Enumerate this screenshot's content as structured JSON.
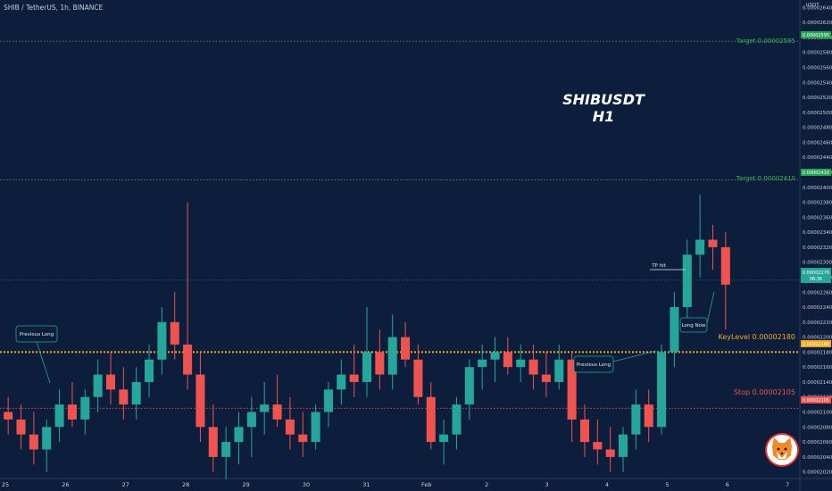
{
  "header": {
    "symbol_line": "SHIB / TetherUS, 1h, BINANCE"
  },
  "price_scale": {
    "currency": "USDT",
    "ticks": [
      "0.00002640",
      "0.00002620",
      "0.00002600",
      "0.00002580",
      "0.00002560",
      "0.00002540",
      "0.00002520",
      "0.00002500",
      "0.00002480",
      "0.00002460",
      "0.00002440",
      "0.00002420",
      "0.00002400",
      "0.00002380",
      "0.00002360",
      "0.00002340",
      "0.00002320",
      "0.00002300",
      "0.00002280",
      "0.00002260",
      "0.00002240",
      "0.00002220",
      "0.00002200",
      "0.00002180",
      "0.00002160",
      "0.00002140",
      "0.00002120",
      "0.00002100",
      "0.00002080",
      "0.00002060",
      "0.00002040",
      "0.00002020"
    ],
    "tick_values": [
      2.64e-05,
      2.62e-05,
      2.6e-05,
      2.58e-05,
      2.56e-05,
      2.54e-05,
      2.52e-05,
      2.5e-05,
      2.48e-05,
      2.46e-05,
      2.44e-05,
      2.42e-05,
      2.4e-05,
      2.38e-05,
      2.36e-05,
      2.34e-05,
      2.32e-05,
      2.3e-05,
      2.28e-05,
      2.26e-05,
      2.24e-05,
      2.22e-05,
      2.2e-05,
      2.18e-05,
      2.16e-05,
      2.14e-05,
      2.12e-05,
      2.1e-05,
      2.08e-05,
      2.06e-05,
      2.04e-05,
      2.02e-05
    ]
  },
  "time_axis": {
    "labels": [
      "25",
      "26",
      "27",
      "28",
      "29",
      "30",
      "31",
      "Feb",
      "2",
      "3",
      "4",
      "5",
      "6",
      "7"
    ]
  },
  "colors": {
    "background": "#0c1e3b",
    "up": "#26a69a",
    "down": "#ef5350",
    "target": "#27a555",
    "keylevel": "#f5a623",
    "stop": "#ef5350",
    "axis_text": "#c8d0dc"
  },
  "chart_data": {
    "type": "candlestick",
    "title": "SHIBUSDT",
    "subtitle": "H1",
    "ylim": [
      2.016e-05,
      2.65e-05
    ],
    "levels": [
      {
        "label": "Target 0.00002595",
        "value": 2.595e-05,
        "badge": "0.00002595",
        "color": "#27a555",
        "style": "dotted"
      },
      {
        "label": "Target 0.00002410",
        "value": 2.41e-05,
        "badge": "0.00002410",
        "color": "#27a555",
        "style": "dotted"
      },
      {
        "label": "KeyLevel 0.00002180",
        "value": 2.18e-05,
        "badge": "0.00002180",
        "color": "#f5a623",
        "style": "dotted-thick"
      },
      {
        "label": "Stop 0.00002105",
        "value": 2.105e-05,
        "badge": "0.00002105",
        "color": "#ef5350",
        "style": "dotted"
      }
    ],
    "current_price": {
      "price": "0.00002276",
      "countdown": "06:36",
      "value": 2.276e-05
    },
    "annotations": [
      {
        "text": "Previous Long"
      },
      {
        "text": "Previous Long"
      },
      {
        "text": "Long Now"
      },
      {
        "text": "TP hit"
      }
    ],
    "candles": [
      {
        "t": "25",
        "o": 2.1e-05,
        "h": 2.12e-05,
        "l": 2.07e-05,
        "c": 2.09e-05
      },
      {
        "t": "25",
        "o": 2.09e-05,
        "h": 2.11e-05,
        "l": 2.05e-05,
        "c": 2.07e-05
      },
      {
        "t": "25",
        "o": 2.07e-05,
        "h": 2.1e-05,
        "l": 2.03e-05,
        "c": 2.05e-05
      },
      {
        "t": "25",
        "o": 2.05e-05,
        "h": 2.09e-05,
        "l": 2.02e-05,
        "c": 2.08e-05
      },
      {
        "t": "25",
        "o": 2.08e-05,
        "h": 2.13e-05,
        "l": 2.06e-05,
        "c": 2.11e-05
      },
      {
        "t": "25",
        "o": 2.11e-05,
        "h": 2.14e-05,
        "l": 2.08e-05,
        "c": 2.09e-05
      },
      {
        "t": "25",
        "o": 2.09e-05,
        "h": 2.13e-05,
        "l": 2.07e-05,
        "c": 2.12e-05
      },
      {
        "t": "26",
        "o": 2.12e-05,
        "h": 2.17e-05,
        "l": 2.1e-05,
        "c": 2.15e-05
      },
      {
        "t": "26",
        "o": 2.15e-05,
        "h": 2.18e-05,
        "l": 2.11e-05,
        "c": 2.13e-05
      },
      {
        "t": "26",
        "o": 2.13e-05,
        "h": 2.16e-05,
        "l": 2.09e-05,
        "c": 2.11e-05
      },
      {
        "t": "26",
        "o": 2.11e-05,
        "h": 2.16e-05,
        "l": 2.09e-05,
        "c": 2.14e-05
      },
      {
        "t": "26",
        "o": 2.14e-05,
        "h": 2.19e-05,
        "l": 2.12e-05,
        "c": 2.17e-05
      },
      {
        "t": "26",
        "o": 2.17e-05,
        "h": 2.24e-05,
        "l": 2.15e-05,
        "c": 2.22e-05
      },
      {
        "t": "26",
        "o": 2.22e-05,
        "h": 2.26e-05,
        "l": 2.17e-05,
        "c": 2.19e-05
      },
      {
        "t": "27",
        "o": 2.19e-05,
        "h": 2.38e-05,
        "l": 2.13e-05,
        "c": 2.15e-05
      },
      {
        "t": "27",
        "o": 2.15e-05,
        "h": 2.18e-05,
        "l": 2.06e-05,
        "c": 2.08e-05
      },
      {
        "t": "27",
        "o": 2.08e-05,
        "h": 2.11e-05,
        "l": 2.02e-05,
        "c": 2.04e-05
      },
      {
        "t": "27",
        "o": 2.04e-05,
        "h": 2.08e-05,
        "l": 2.01e-05,
        "c": 2.06e-05
      },
      {
        "t": "27",
        "o": 2.06e-05,
        "h": 2.1e-05,
        "l": 2.03e-05,
        "c": 2.08e-05
      },
      {
        "t": "28",
        "o": 2.08e-05,
        "h": 2.12e-05,
        "l": 2.04e-05,
        "c": 2.1e-05
      },
      {
        "t": "28",
        "o": 2.1e-05,
        "h": 2.14e-05,
        "l": 2.07e-05,
        "c": 2.11e-05
      },
      {
        "t": "28",
        "o": 2.11e-05,
        "h": 2.15e-05,
        "l": 2.08e-05,
        "c": 2.09e-05
      },
      {
        "t": "28",
        "o": 2.09e-05,
        "h": 2.12e-05,
        "l": 2.05e-05,
        "c": 2.07e-05
      },
      {
        "t": "28",
        "o": 2.07e-05,
        "h": 2.1e-05,
        "l": 2.04e-05,
        "c": 2.06e-05
      },
      {
        "t": "29",
        "o": 2.06e-05,
        "h": 2.11e-05,
        "l": 2.05e-05,
        "c": 2.1e-05
      },
      {
        "t": "29",
        "o": 2.1e-05,
        "h": 2.14e-05,
        "l": 2.08e-05,
        "c": 2.13e-05
      },
      {
        "t": "29",
        "o": 2.13e-05,
        "h": 2.17e-05,
        "l": 2.11e-05,
        "c": 2.15e-05
      },
      {
        "t": "29",
        "o": 2.15e-05,
        "h": 2.19e-05,
        "l": 2.12e-05,
        "c": 2.14e-05
      },
      {
        "t": "30",
        "o": 2.14e-05,
        "h": 2.24e-05,
        "l": 2.12e-05,
        "c": 2.18e-05
      },
      {
        "t": "30",
        "o": 2.18e-05,
        "h": 2.21e-05,
        "l": 2.13e-05,
        "c": 2.15e-05
      },
      {
        "t": "30",
        "o": 2.15e-05,
        "h": 2.23e-05,
        "l": 2.13e-05,
        "c": 2.2e-05
      },
      {
        "t": "30",
        "o": 2.2e-05,
        "h": 2.22e-05,
        "l": 2.16e-05,
        "c": 2.17e-05
      },
      {
        "t": "31",
        "o": 2.17e-05,
        "h": 2.19e-05,
        "l": 2.11e-05,
        "c": 2.12e-05
      },
      {
        "t": "31",
        "o": 2.12e-05,
        "h": 2.14e-05,
        "l": 2.05e-05,
        "c": 2.06e-05
      },
      {
        "t": "31",
        "o": 2.06e-05,
        "h": 2.09e-05,
        "l": 2.03e-05,
        "c": 2.07e-05
      },
      {
        "t": "31",
        "o": 2.07e-05,
        "h": 2.12e-05,
        "l": 2.05e-05,
        "c": 2.11e-05
      },
      {
        "t": "Feb",
        "o": 2.11e-05,
        "h": 2.17e-05,
        "l": 2.09e-05,
        "c": 2.16e-05
      },
      {
        "t": "Feb",
        "o": 2.16e-05,
        "h": 2.19e-05,
        "l": 2.13e-05,
        "c": 2.17e-05
      },
      {
        "t": "Feb",
        "o": 2.17e-05,
        "h": 2.2e-05,
        "l": 2.14e-05,
        "c": 2.18e-05
      },
      {
        "t": "Feb",
        "o": 2.18e-05,
        "h": 2.2e-05,
        "l": 2.15e-05,
        "c": 2.16e-05
      },
      {
        "t": "2",
        "o": 2.16e-05,
        "h": 2.19e-05,
        "l": 2.14e-05,
        "c": 2.17e-05
      },
      {
        "t": "2",
        "o": 2.17e-05,
        "h": 2.19e-05,
        "l": 2.13e-05,
        "c": 2.15e-05
      },
      {
        "t": "2",
        "o": 2.15e-05,
        "h": 2.18e-05,
        "l": 2.12e-05,
        "c": 2.14e-05
      },
      {
        "t": "2",
        "o": 2.14e-05,
        "h": 2.19e-05,
        "l": 2.13e-05,
        "c": 2.17e-05
      },
      {
        "t": "3",
        "o": 2.17e-05,
        "h": 2.18e-05,
        "l": 2.06e-05,
        "c": 2.09e-05
      },
      {
        "t": "3",
        "o": 2.09e-05,
        "h": 2.11e-05,
        "l": 2.04e-05,
        "c": 2.06e-05
      },
      {
        "t": "3",
        "o": 2.06e-05,
        "h": 2.09e-05,
        "l": 2.03e-05,
        "c": 2.05e-05
      },
      {
        "t": "3",
        "o": 2.05e-05,
        "h": 2.08e-05,
        "l": 2.02e-05,
        "c": 2.04e-05
      },
      {
        "t": "4",
        "o": 2.04e-05,
        "h": 2.08e-05,
        "l": 2.02e-05,
        "c": 2.07e-05
      },
      {
        "t": "4",
        "o": 2.07e-05,
        "h": 2.13e-05,
        "l": 2.05e-05,
        "c": 2.11e-05
      },
      {
        "t": "4",
        "o": 2.11e-05,
        "h": 2.13e-05,
        "l": 2.06e-05,
        "c": 2.08e-05
      },
      {
        "t": "4",
        "o": 2.08e-05,
        "h": 2.19e-05,
        "l": 2.07e-05,
        "c": 2.18e-05
      },
      {
        "t": "5",
        "o": 2.18e-05,
        "h": 2.26e-05,
        "l": 2.16e-05,
        "c": 2.24e-05
      },
      {
        "t": "5",
        "o": 2.24e-05,
        "h": 2.33e-05,
        "l": 2.22e-05,
        "c": 2.31e-05
      },
      {
        "t": "5",
        "o": 2.31e-05,
        "h": 2.39e-05,
        "l": 2.28e-05,
        "c": 2.33e-05
      },
      {
        "t": "5",
        "o": 2.33e-05,
        "h": 2.35e-05,
        "l": 2.29e-05,
        "c": 2.32e-05
      },
      {
        "t": "6",
        "o": 2.32e-05,
        "h": 2.34e-05,
        "l": 2.21e-05,
        "c": 2.27e-05
      }
    ]
  }
}
